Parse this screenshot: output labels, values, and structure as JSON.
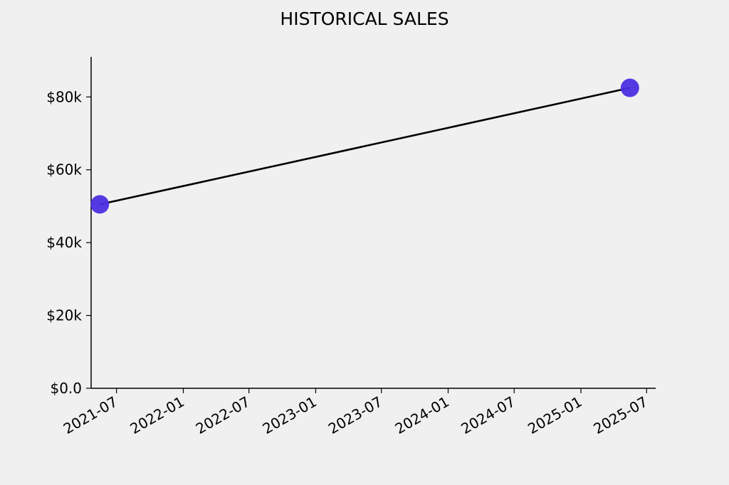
{
  "chart_data": {
    "type": "line",
    "title": "HISTORICAL SALES",
    "xlabel": "",
    "ylabel": "",
    "x_ticks": [
      "2021-07",
      "2022-01",
      "2022-07",
      "2023-01",
      "2023-07",
      "2024-01",
      "2024-07",
      "2025-01",
      "2025-07"
    ],
    "y_ticks": [
      "$0.0",
      "$20k",
      "$40k",
      "$60k",
      "$80k"
    ],
    "y_tick_values": [
      0,
      20000,
      40000,
      60000,
      80000
    ],
    "ylim": [
      0,
      91000
    ],
    "xlim": [
      "2021-04-22",
      "2025-07-26"
    ],
    "grid": false,
    "series": [
      {
        "x": [
          "2021-05-16",
          "2025-05-16"
        ],
        "y": [
          50500,
          82500
        ],
        "color": "#4a2fe0",
        "line_color": "#000000"
      }
    ]
  }
}
